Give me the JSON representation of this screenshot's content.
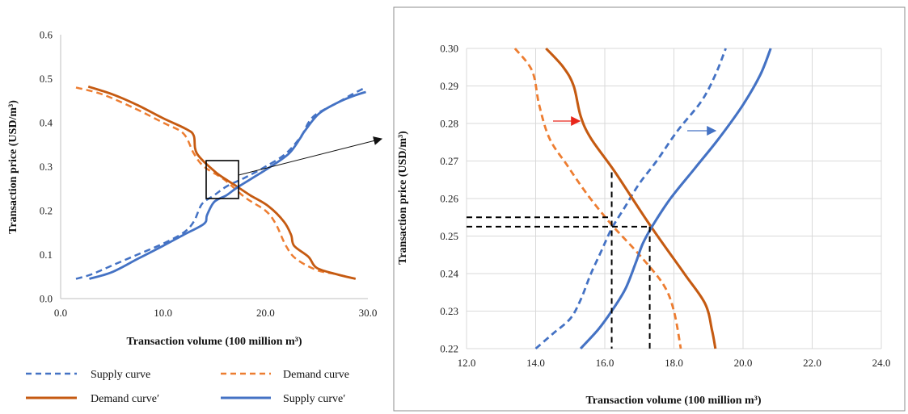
{
  "colors": {
    "supply": "#4472c4",
    "demand": "#ed7d31",
    "demand_shifted": "#c55a11",
    "arrow_demand": "#e8261a",
    "arrow_supply": "#4472c4",
    "grid": "#d9d9d9"
  },
  "chart_data": [
    {
      "type": "line",
      "panel": "overview",
      "xlabel": "Transaction volume (100 million m³)",
      "ylabel": "Transaction price (USD/m³)",
      "xlim": [
        0,
        30
      ],
      "ylim": [
        0,
        0.6
      ],
      "xticks": [
        "0.0",
        "10.0",
        "20.0",
        "30.0"
      ],
      "yticks": [
        "0.0",
        "0.1",
        "0.2",
        "0.3",
        "0.4",
        "0.5",
        "0.6"
      ],
      "grid": false,
      "series": [
        {
          "name": "Supply curve",
          "style": "dashed",
          "color": "#4472c4",
          "x": [
            1.5,
            3.0,
            5.0,
            7.5,
            10.0,
            12.0,
            13.0,
            13.8,
            15.0,
            16.2,
            18.0,
            20.0,
            22.0,
            23.5,
            24.2,
            25.0,
            27.0,
            28.5,
            29.6
          ],
          "y": [
            0.045,
            0.055,
            0.075,
            0.1,
            0.125,
            0.15,
            0.175,
            0.215,
            0.235,
            0.255,
            0.275,
            0.3,
            0.33,
            0.37,
            0.4,
            0.42,
            0.445,
            0.465,
            0.478
          ]
        },
        {
          "name": "Demand curve",
          "style": "dashed",
          "color": "#ed7d31",
          "x": [
            1.5,
            4.0,
            7.0,
            10.0,
            12.0,
            13.0,
            14.0,
            16.0,
            18.0,
            20.0,
            21.0,
            22.0,
            23.0,
            25.0,
            27.0,
            28.8
          ],
          "y": [
            0.48,
            0.465,
            0.435,
            0.4,
            0.375,
            0.33,
            0.3,
            0.27,
            0.23,
            0.2,
            0.17,
            0.12,
            0.09,
            0.065,
            0.055,
            0.045
          ]
        },
        {
          "name": "Demand curve′",
          "style": "solid",
          "color": "#c55a11",
          "x": [
            2.7,
            5.0,
            7.5,
            10.0,
            12.3,
            13.0,
            13.3,
            15.0,
            16.2,
            17.2,
            18.5,
            20.3,
            21.8,
            22.5,
            22.8,
            24.2,
            25.0,
            27.0,
            28.8
          ],
          "y": [
            0.482,
            0.465,
            0.44,
            0.41,
            0.385,
            0.37,
            0.33,
            0.29,
            0.27,
            0.255,
            0.235,
            0.21,
            0.175,
            0.145,
            0.12,
            0.095,
            0.07,
            0.055,
            0.045
          ]
        },
        {
          "name": "Supply curve′",
          "style": "solid",
          "color": "#4472c4",
          "x": [
            2.8,
            5.0,
            7.5,
            10.0,
            12.0,
            14.0,
            14.3,
            15.0,
            16.2,
            17.2,
            18.8,
            20.5,
            22.3,
            23.4,
            23.8,
            25.2,
            27.0,
            28.5,
            29.8
          ],
          "y": [
            0.045,
            0.06,
            0.09,
            0.12,
            0.145,
            0.17,
            0.19,
            0.22,
            0.235,
            0.252,
            0.275,
            0.3,
            0.33,
            0.365,
            0.38,
            0.42,
            0.445,
            0.46,
            0.47
          ]
        }
      ],
      "annotation": "zoom box around intersection, arrow to detail panel"
    },
    {
      "type": "line",
      "panel": "detail",
      "xlabel": "Transaction volume (100 million m³)",
      "ylabel": "Transaction price (USD/m³)",
      "xlim": [
        12,
        24
      ],
      "ylim": [
        0.22,
        0.3
      ],
      "xticks": [
        "12.0",
        "14.0",
        "16.0",
        "18.0",
        "20.0",
        "22.0",
        "24.0"
      ],
      "yticks": [
        "0.22",
        "0.23",
        "0.24",
        "0.25",
        "0.26",
        "0.27",
        "0.28",
        "0.29",
        "0.30"
      ],
      "grid": true,
      "series": [
        {
          "name": "Supply curve",
          "style": "dashed",
          "color": "#4472c4",
          "x": [
            14.0,
            14.5,
            15.0,
            15.3,
            15.6,
            15.9,
            16.2,
            16.6,
            17.0,
            17.5,
            18.1,
            18.8,
            19.2,
            19.5
          ],
          "y": [
            0.22,
            0.224,
            0.228,
            0.233,
            0.24,
            0.246,
            0.252,
            0.258,
            0.264,
            0.27,
            0.278,
            0.286,
            0.293,
            0.3
          ]
        },
        {
          "name": "Demand curve",
          "style": "dashed",
          "color": "#ed7d31",
          "x": [
            13.4,
            13.9,
            14.1,
            14.4,
            14.9,
            15.5,
            16.2,
            17.0,
            17.7,
            18.0,
            18.2
          ],
          "y": [
            0.3,
            0.294,
            0.285,
            0.276,
            0.269,
            0.261,
            0.253,
            0.245,
            0.237,
            0.23,
            0.22
          ]
        },
        {
          "name": "Demand curve′",
          "style": "solid",
          "color": "#c55a11",
          "x": [
            14.3,
            14.8,
            15.1,
            15.3,
            15.6,
            16.3,
            17.3,
            18.3,
            18.9,
            19.1,
            19.2
          ],
          "y": [
            0.3,
            0.295,
            0.29,
            0.282,
            0.276,
            0.267,
            0.253,
            0.24,
            0.232,
            0.225,
            0.22
          ]
        },
        {
          "name": "Supply curve′",
          "style": "solid",
          "color": "#4472c4",
          "x": [
            15.3,
            15.8,
            16.2,
            16.6,
            16.9,
            17.1,
            17.4,
            17.9,
            18.6,
            19.3,
            20.0,
            20.5,
            20.8
          ],
          "y": [
            0.22,
            0.225,
            0.23,
            0.236,
            0.243,
            0.248,
            0.253,
            0.26,
            0.268,
            0.276,
            0.285,
            0.293,
            0.3
          ]
        }
      ],
      "reference_lines": {
        "vertical_x": [
          16.2,
          17.3
        ],
        "horizontal_y": [
          0.255,
          0.2525
        ],
        "style": "black dashed"
      },
      "arrows": [
        "red arrow pointing right at Demand curve′",
        "blue arrow pointing right at Supply curve′"
      ]
    }
  ]
}
